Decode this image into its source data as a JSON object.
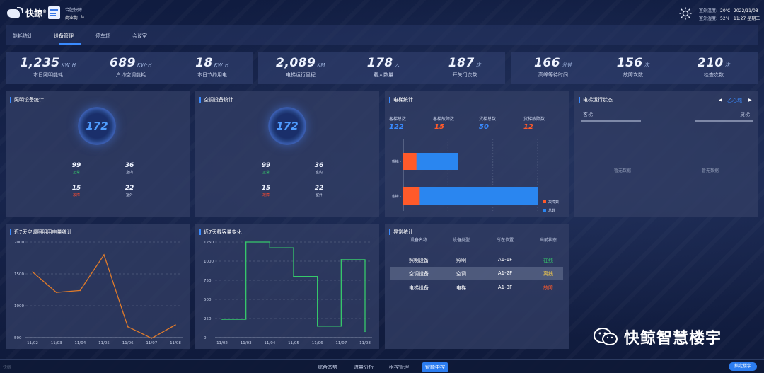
{
  "header": {
    "brand": "快鲸",
    "brand_reg": "®",
    "project_name": "合肥快鲸",
    "project_type": "商业街",
    "project_switch": "⇆",
    "weather": {
      "temp_label": "室外温度:",
      "temp_value": "20℃",
      "humidity_label": "室外湿度:",
      "humidity_value": "52%"
    },
    "date": "2022/11/08",
    "time_weekday": "11:27 星期二"
  },
  "nav": {
    "tabs": [
      "能耗统计",
      "设备管理",
      "停车场",
      "会议室"
    ],
    "active": "设备管理"
  },
  "kpis": [
    {
      "value": "1,235",
      "unit": "KW·H",
      "label": "本日照明能耗"
    },
    {
      "value": "689",
      "unit": "KW·H",
      "label": "户均空调能耗"
    },
    {
      "value": "18",
      "unit": "KW·H",
      "label": "本日节约用电"
    },
    {
      "value": "2,089",
      "unit": "KM",
      "label": "电梯运行里程"
    },
    {
      "value": "178",
      "unit": "人",
      "label": "载人数量"
    },
    {
      "value": "187",
      "unit": "次",
      "label": "开关门次数"
    },
    {
      "value": "166",
      "unit": "分钟",
      "label": "高峰等待时间"
    },
    {
      "value": "156",
      "unit": "次",
      "label": "故障次数"
    },
    {
      "value": "210",
      "unit": "次",
      "label": "检查次数"
    }
  ],
  "lighting": {
    "title": "照明设备统计",
    "total": "172",
    "stats": [
      {
        "value": "99",
        "label": "正常",
        "color": "green"
      },
      {
        "value": "36",
        "label": "室内",
        "color": "grey"
      },
      {
        "value": "15",
        "label": "故障",
        "color": "red"
      },
      {
        "value": "22",
        "label": "室外",
        "color": "grey"
      }
    ]
  },
  "aircon": {
    "title": "空调设备统计",
    "total": "172",
    "stats": [
      {
        "value": "99",
        "label": "正常",
        "color": "green"
      },
      {
        "value": "36",
        "label": "室内",
        "color": "grey"
      },
      {
        "value": "15",
        "label": "故障",
        "color": "red"
      },
      {
        "value": "22",
        "label": "室外",
        "color": "grey"
      }
    ]
  },
  "elevator": {
    "title": "电梯统计",
    "stats": [
      {
        "label": "客梯总数",
        "value": "122",
        "color": "#3a8bff"
      },
      {
        "label": "客梯故障数",
        "value": "15",
        "color": "#ff5a2a"
      },
      {
        "label": "货梯总数",
        "value": "50",
        "color": "#3a8bff"
      },
      {
        "label": "货梯故障数",
        "value": "12",
        "color": "#ff5a2a"
      }
    ],
    "legend": [
      "故障数",
      "总数"
    ]
  },
  "elevator_status": {
    "title": "电梯运行状态",
    "building": "乙心城",
    "prev_icon": "◀",
    "next_icon": "▶",
    "left_label": "客梯",
    "right_label": "货梯",
    "empty_left": "暂无数据",
    "empty_right": "暂无数据"
  },
  "energy_chart": {
    "title": "近7天空调照明用电量统计"
  },
  "visitor_chart": {
    "title": "近7天载客量变化"
  },
  "anomaly": {
    "title": "异常统计",
    "headers": [
      "设备名称",
      "设备类型",
      "所在位置",
      "当前状态"
    ],
    "rows": [
      {
        "name": "照明设备",
        "type": "照明",
        "location": "A1-1F",
        "status": "在线",
        "color": "#36c96b"
      },
      {
        "name": "空调设备",
        "type": "空调",
        "location": "A1-2F",
        "status": "离线",
        "color": "#f2c94c"
      },
      {
        "name": "电梯设备",
        "type": "电梯",
        "location": "A1-3F",
        "status": "故障",
        "color": "#ff5a2a"
      }
    ]
  },
  "bottom": {
    "tabs": [
      "综合态势",
      "流量分析",
      "租控管理",
      "智能中控"
    ],
    "active": "智能中控",
    "right_button": "指定楼宇",
    "left_mark": "快鲸"
  },
  "watermark": "快鲸智慧楼宇",
  "chart_data": [
    {
      "type": "bar",
      "orientation": "horizontal",
      "categories": [
        "货梯",
        "客梯"
      ],
      "series": [
        {
          "name": "故障数",
          "values": [
            12,
            15
          ],
          "color": "#ff5a2a"
        },
        {
          "name": "总数",
          "values": [
            50,
            122
          ],
          "color": "#2a86f0"
        }
      ],
      "title": "电梯统计"
    },
    {
      "type": "line",
      "title": "近7天空调照明用电量统计",
      "x": [
        "11/02",
        "11/03",
        "11/04",
        "11/05",
        "11/06",
        "11/07",
        "11/08"
      ],
      "series": [
        {
          "values": [
            1530,
            1210,
            1240,
            1800,
            670,
            490,
            700
          ],
          "color": "#e07b2a"
        }
      ],
      "yticks": [
        500,
        1000,
        1500,
        2000
      ],
      "ylim": [
        500,
        2000
      ]
    },
    {
      "type": "line",
      "step": true,
      "title": "近7天载客量变化",
      "x": [
        "11/02",
        "11/03",
        "11/04",
        "11/05",
        "11/06",
        "11/07",
        "11/08"
      ],
      "series": [
        {
          "values": [
            240,
            1250,
            1175,
            800,
            150,
            1020,
            80
          ],
          "color": "#36c96b"
        }
      ],
      "yticks": [
        0,
        250,
        500,
        750,
        1000,
        1250
      ],
      "ylim": [
        0,
        1250
      ]
    }
  ]
}
